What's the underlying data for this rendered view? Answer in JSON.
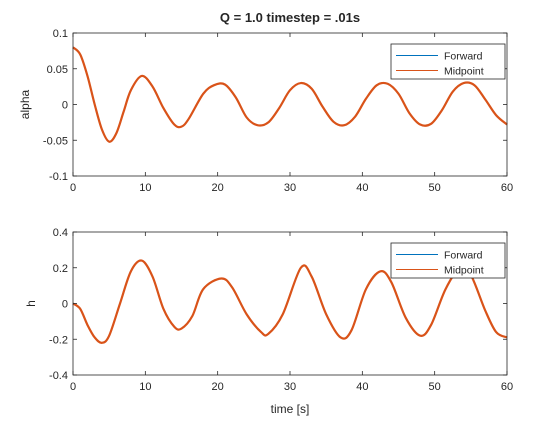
{
  "colors": {
    "forward": "#0072BD",
    "midpoint": "#D95319",
    "axis": "#262626",
    "background": "#ffffff"
  },
  "chart_data": [
    {
      "type": "line",
      "title": "Q = 1.0 timestep = .01s",
      "xlabel": "",
      "ylabel": "alpha",
      "xlim": [
        0,
        60
      ],
      "ylim": [
        -0.1,
        0.1
      ],
      "xticks": [
        0,
        10,
        20,
        30,
        40,
        50,
        60
      ],
      "yticks": [
        -0.1,
        -0.05,
        0,
        0.05,
        0.1
      ],
      "ytick_labels": [
        "-0.1",
        "-0.05",
        "0",
        "0.05",
        "0.1"
      ],
      "legend": {
        "position": "top-right",
        "entries": [
          "Forward",
          "Midpoint"
        ]
      },
      "series": [
        {
          "name": "Forward",
          "x": [
            0,
            1,
            2,
            3,
            4,
            5,
            6,
            7,
            8,
            9.5,
            11,
            12.5,
            14,
            15,
            16,
            18,
            19.5,
            21,
            22.5,
            24,
            25.5,
            27,
            28.5,
            30,
            31.5,
            33,
            34.5,
            36,
            37.5,
            39,
            40.5,
            42,
            43.5,
            45,
            46.5,
            48,
            49.5,
            51,
            52.5,
            54,
            55.5,
            57,
            58.5,
            60
          ],
          "y": [
            0.08,
            0.07,
            0.04,
            0.0,
            -0.035,
            -0.052,
            -0.04,
            -0.01,
            0.02,
            0.04,
            0.025,
            -0.005,
            -0.028,
            -0.031,
            -0.02,
            0.015,
            0.027,
            0.028,
            0.01,
            -0.018,
            -0.029,
            -0.025,
            -0.005,
            0.02,
            0.03,
            0.022,
            -0.003,
            -0.024,
            -0.029,
            -0.017,
            0.008,
            0.027,
            0.029,
            0.015,
            -0.012,
            -0.028,
            -0.027,
            -0.008,
            0.018,
            0.03,
            0.027,
            0.007,
            -0.015,
            -0.028
          ]
        },
        {
          "name": "Midpoint",
          "x": [
            0,
            1,
            2,
            3,
            4,
            5,
            6,
            7,
            8,
            9.5,
            11,
            12.5,
            14,
            15,
            16,
            18,
            19.5,
            21,
            22.5,
            24,
            25.5,
            27,
            28.5,
            30,
            31.5,
            33,
            34.5,
            36,
            37.5,
            39,
            40.5,
            42,
            43.5,
            45,
            46.5,
            48,
            49.5,
            51,
            52.5,
            54,
            55.5,
            57,
            58.5,
            60
          ],
          "y": [
            0.08,
            0.07,
            0.04,
            0.0,
            -0.035,
            -0.052,
            -0.04,
            -0.01,
            0.02,
            0.04,
            0.025,
            -0.005,
            -0.028,
            -0.031,
            -0.02,
            0.015,
            0.027,
            0.028,
            0.01,
            -0.018,
            -0.029,
            -0.025,
            -0.005,
            0.02,
            0.03,
            0.022,
            -0.003,
            -0.024,
            -0.029,
            -0.017,
            0.008,
            0.027,
            0.029,
            0.015,
            -0.012,
            -0.028,
            -0.027,
            -0.008,
            0.018,
            0.03,
            0.027,
            0.007,
            -0.015,
            -0.028
          ]
        }
      ]
    },
    {
      "type": "line",
      "title": "",
      "xlabel": "time [s]",
      "ylabel": "h",
      "xlim": [
        0,
        60
      ],
      "ylim": [
        -0.4,
        0.4
      ],
      "xticks": [
        0,
        10,
        20,
        30,
        40,
        50,
        60
      ],
      "yticks": [
        -0.4,
        -0.2,
        0,
        0.2,
        0.4
      ],
      "ytick_labels": [
        "-0.4",
        "-0.2",
        "0",
        "0.2",
        "0.4"
      ],
      "legend": {
        "position": "top-right",
        "entries": [
          "Forward",
          "Midpoint"
        ]
      },
      "series": [
        {
          "name": "Forward",
          "x": [
            0,
            1,
            2,
            3,
            4,
            5,
            6.5,
            8,
            9.5,
            11,
            12.5,
            14,
            15,
            16.5,
            18,
            20.5,
            22,
            24,
            26,
            27,
            29,
            31.5,
            33,
            35,
            37,
            38.5,
            40.5,
            42.5,
            44,
            46,
            48,
            49.5,
            51.5,
            53.5,
            55,
            57,
            58.5,
            60
          ],
          "y": [
            0.0,
            -0.03,
            -0.12,
            -0.19,
            -0.22,
            -0.18,
            0.0,
            0.18,
            0.24,
            0.15,
            -0.03,
            -0.13,
            -0.14,
            -0.07,
            0.08,
            0.14,
            0.09,
            -0.06,
            -0.16,
            -0.17,
            -0.06,
            0.2,
            0.15,
            -0.06,
            -0.19,
            -0.15,
            0.08,
            0.18,
            0.12,
            -0.08,
            -0.18,
            -0.12,
            0.08,
            0.2,
            0.16,
            -0.04,
            -0.16,
            -0.19
          ]
        },
        {
          "name": "Midpoint",
          "x": [
            0,
            1,
            2,
            3,
            4,
            5,
            6.5,
            8,
            9.5,
            11,
            12.5,
            14,
            15,
            16.5,
            18,
            20.5,
            22,
            24,
            26,
            27,
            29,
            31.5,
            33,
            35,
            37,
            38.5,
            40.5,
            42.5,
            44,
            46,
            48,
            49.5,
            51.5,
            53.5,
            55,
            57,
            58.5,
            60
          ],
          "y": [
            0.0,
            -0.03,
            -0.12,
            -0.19,
            -0.22,
            -0.18,
            0.0,
            0.18,
            0.24,
            0.15,
            -0.03,
            -0.13,
            -0.14,
            -0.07,
            0.08,
            0.14,
            0.09,
            -0.06,
            -0.16,
            -0.17,
            -0.06,
            0.2,
            0.15,
            -0.06,
            -0.19,
            -0.15,
            0.08,
            0.18,
            0.12,
            -0.08,
            -0.18,
            -0.12,
            0.08,
            0.2,
            0.16,
            -0.04,
            -0.16,
            -0.19
          ]
        }
      ]
    }
  ]
}
